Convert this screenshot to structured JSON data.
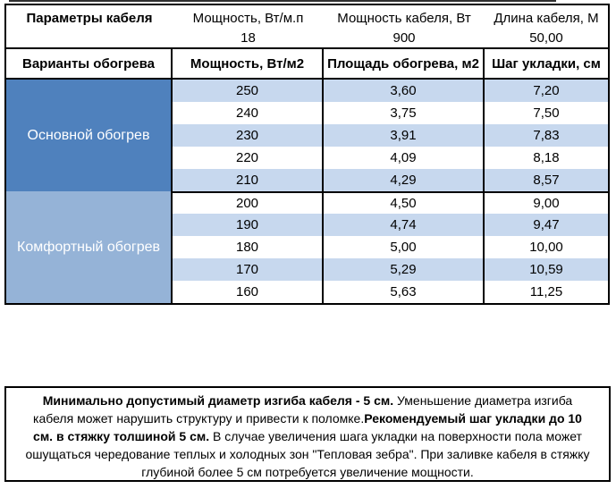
{
  "table": {
    "params_header": {
      "col1_label": "Параметры кабеля",
      "cols": [
        {
          "label": "Мощность, Вт/м.п",
          "value": "18"
        },
        {
          "label": "Мощность кабеля, Вт",
          "value": "900"
        },
        {
          "label": "Длина кабеля, М",
          "value": "50,00"
        }
      ]
    },
    "columns_header": [
      "Варианты обогрева",
      "Мощность, Вт/м2",
      "Площадь обогрева, м2",
      "Шаг укладки, см"
    ],
    "sections": [
      {
        "label": "Основной обогрев",
        "color": "#4f81bd",
        "rows": [
          [
            "250",
            "3,60",
            "7,20"
          ],
          [
            "240",
            "3,75",
            "7,50"
          ],
          [
            "230",
            "3,91",
            "7,83"
          ],
          [
            "220",
            "4,09",
            "8,18"
          ],
          [
            "210",
            "4,29",
            "8,57"
          ]
        ]
      },
      {
        "label": "Комфортный обогрев",
        "color": "#95b3d7",
        "rows": [
          [
            "200",
            "4,50",
            "9,00"
          ],
          [
            "190",
            "4,74",
            "9,47"
          ],
          [
            "180",
            "5,00",
            "10,00"
          ],
          [
            "170",
            "5,29",
            "10,59"
          ],
          [
            "160",
            "5,63",
            "11,25"
          ]
        ]
      }
    ],
    "band_color": "#c7d8ee",
    "white_color": "#ffffff"
  },
  "note": {
    "segments": [
      {
        "text": "Минимально допустимый диаметр изгиба кабеля - 5 см.",
        "bold": true
      },
      {
        "text": "  Уменьшение диаметра изгиба кабеля может нарушить структуру и привести к поломке.",
        "bold": false
      },
      {
        "text": "Рекомендуемый шаг укладки до 10 см. в стяжку толшиной 5 см.",
        "bold": true
      },
      {
        "text": " В  случае увеличения шага укладки на поверхности пола может ошущаться чередование теплых и холодных зон \"Тепловая зебра\". При заливке кабеля в стяжку глубиной более 5 см потребуется увеличение мощности.",
        "bold": false
      }
    ]
  }
}
